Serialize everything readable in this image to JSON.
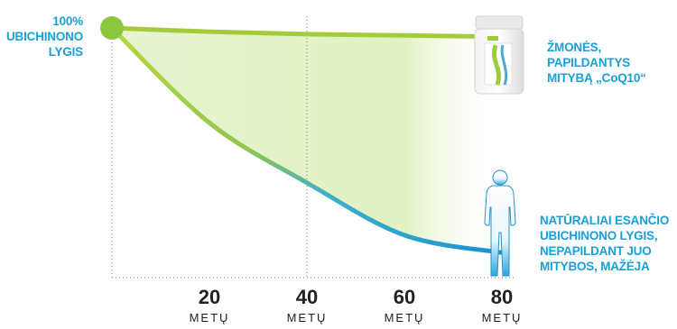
{
  "chart_data": {
    "type": "line",
    "x": [
      0,
      20,
      40,
      60,
      80
    ],
    "xlim": [
      0,
      80
    ],
    "ylim": [
      0,
      100
    ],
    "tick_values": [
      20,
      40,
      60,
      80
    ],
    "tick_labels": [
      "20",
      "40",
      "60",
      "80"
    ],
    "tick_unit": "METŲ",
    "series": [
      {
        "values": [
          100,
          98.5,
          97.5,
          97,
          96.5
        ],
        "color": "#a4cc3a"
      },
      {
        "values": [
          100,
          62,
          38,
          17,
          10
        ],
        "color_start": "#a6d13a",
        "color_end": "#1aa0d8"
      }
    ],
    "annotations": {
      "start": [
        "100%",
        "UBICHINONO",
        "LYGIS"
      ],
      "supplemented": [
        "ŽMONĖS,",
        "PAPILDANTYS",
        "MITYBĄ „CoQ10“"
      ],
      "natural": [
        "NATŪRALIAI ESANČIO",
        "UBICHINONO LYGIS,",
        "NEPAPILDANT JUO",
        "MITYBOS, MAŽĖJA"
      ]
    },
    "colors": {
      "label_text": "#1aa0d8",
      "start_dot": "#8cc63f",
      "fill": "#d6ecb0"
    }
  }
}
